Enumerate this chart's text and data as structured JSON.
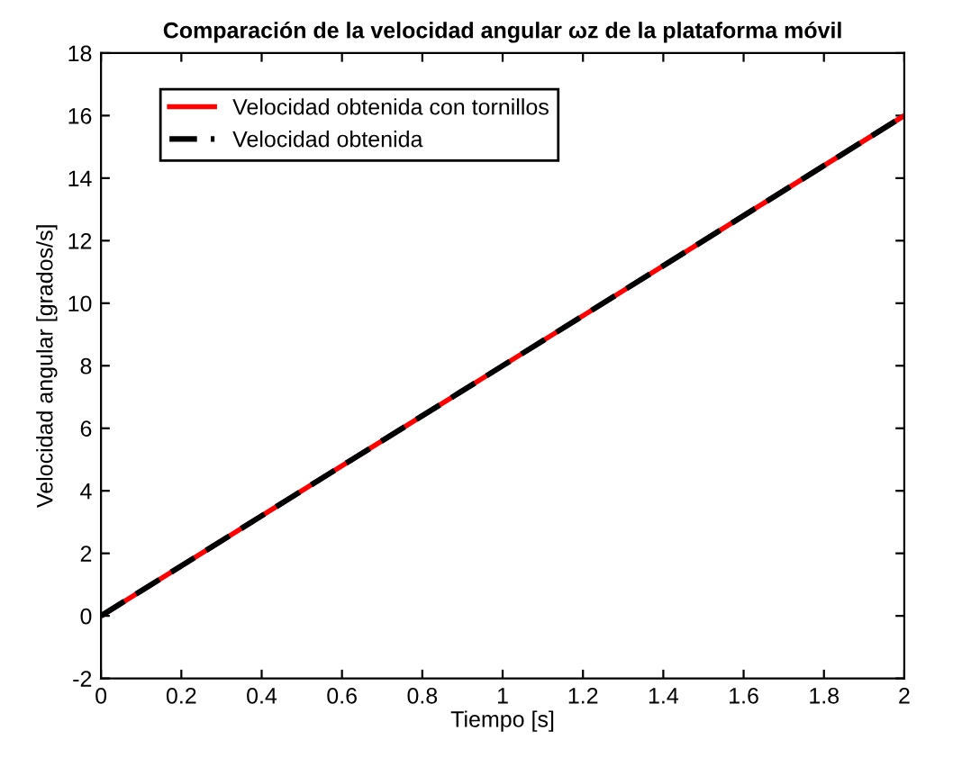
{
  "chart_data": {
    "type": "line",
    "title": "Comparación de la velocidad angular ωz de la plataforma móvil",
    "xlabel": "Tiempo [s]",
    "ylabel": "Velocidad angular [grados/s]",
    "x": [
      0,
      0.5,
      1,
      1.5,
      2
    ],
    "series": [
      {
        "name": "Velocidad obtenida con tornillos",
        "color": "#ff0000",
        "values": [
          0,
          4,
          8,
          12,
          16
        ],
        "line_style": "solid"
      },
      {
        "name": "Velocidad obtenida",
        "color": "#000000",
        "values": [
          0,
          4,
          8,
          12,
          16
        ],
        "line_style": "dashed"
      }
    ],
    "xlim": [
      0,
      2
    ],
    "ylim": [
      -2,
      18
    ],
    "xticks": [
      0,
      0.2,
      0.4,
      0.6,
      0.8,
      1,
      1.2,
      1.4,
      1.6,
      1.8,
      2
    ],
    "yticks": [
      -2,
      0,
      2,
      4,
      6,
      8,
      10,
      12,
      14,
      16,
      18
    ],
    "grid": false,
    "legend": "top left"
  }
}
